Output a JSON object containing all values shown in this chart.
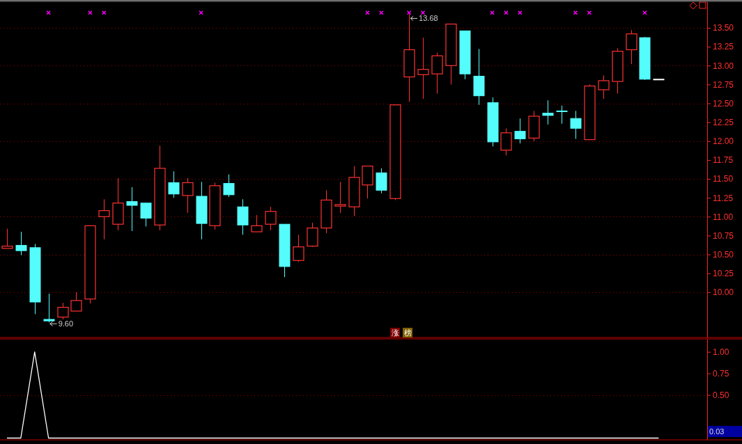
{
  "chart_data": [
    {
      "type": "candlestick",
      "categories": [
        null,
        null,
        null,
        null,
        null,
        null,
        null,
        null,
        null,
        null,
        null,
        null,
        null,
        null,
        null,
        null,
        null,
        null,
        null,
        null,
        null,
        null,
        null,
        null,
        null,
        null,
        null,
        null,
        null,
        null,
        null,
        null,
        null,
        null,
        null,
        null,
        null,
        null,
        null,
        null,
        null,
        null,
        null,
        null,
        null,
        null,
        null,
        null,
        null,
        null,
        null
      ],
      "ohlc": [
        [
          10.58,
          10.84,
          10.58,
          10.61
        ],
        [
          10.62,
          10.8,
          10.49,
          10.55
        ],
        [
          10.59,
          10.64,
          9.71,
          9.87
        ],
        [
          9.64,
          9.98,
          9.6,
          9.62
        ],
        [
          9.67,
          9.86,
          9.64,
          9.8
        ],
        [
          9.75,
          10.0,
          9.75,
          9.89
        ],
        [
          9.91,
          10.88,
          9.85,
          10.88
        ],
        [
          11.0,
          11.23,
          10.7,
          11.08
        ],
        [
          10.9,
          11.51,
          10.82,
          11.18
        ],
        [
          11.2,
          11.39,
          10.81,
          11.15
        ],
        [
          11.18,
          11.18,
          10.87,
          10.98
        ],
        [
          10.89,
          11.94,
          10.82,
          11.64
        ],
        [
          11.45,
          11.6,
          11.25,
          11.3
        ],
        [
          11.28,
          11.51,
          11.05,
          11.45
        ],
        [
          11.27,
          11.46,
          10.7,
          10.91
        ],
        [
          10.88,
          11.45,
          10.83,
          11.41
        ],
        [
          11.44,
          11.56,
          11.26,
          11.29
        ],
        [
          11.13,
          11.23,
          10.76,
          10.89
        ],
        [
          10.8,
          11.02,
          10.8,
          10.88
        ],
        [
          10.9,
          11.13,
          10.82,
          11.07
        ],
        [
          10.9,
          10.9,
          10.2,
          10.34
        ],
        [
          10.42,
          10.76,
          10.4,
          10.6
        ],
        [
          10.61,
          10.92,
          10.6,
          10.85
        ],
        [
          10.85,
          11.35,
          10.78,
          11.22
        ],
        [
          11.14,
          11.46,
          11.05,
          11.16
        ],
        [
          11.13,
          11.67,
          11.01,
          11.52
        ],
        [
          11.42,
          11.67,
          11.24,
          11.67
        ],
        [
          11.58,
          11.64,
          11.31,
          11.35
        ],
        [
          11.24,
          12.48,
          11.22,
          12.48
        ],
        [
          12.85,
          13.68,
          12.52,
          13.21
        ],
        [
          12.88,
          13.37,
          12.56,
          12.95
        ],
        [
          12.89,
          13.17,
          12.63,
          13.13
        ],
        [
          13.0,
          13.55,
          12.75,
          13.55
        ],
        [
          13.46,
          13.46,
          12.82,
          12.89
        ],
        [
          12.86,
          13.22,
          12.48,
          12.6
        ],
        [
          12.51,
          12.58,
          11.93,
          11.99
        ],
        [
          11.88,
          12.17,
          11.81,
          12.11
        ],
        [
          12.13,
          12.3,
          11.97,
          12.03
        ],
        [
          12.04,
          12.4,
          12.0,
          12.33
        ],
        [
          12.37,
          12.54,
          12.22,
          12.34
        ],
        [
          12.4,
          12.47,
          12.23,
          12.39
        ],
        [
          12.3,
          12.4,
          12.03,
          12.17
        ],
        [
          12.02,
          12.75,
          12.02,
          12.73
        ],
        [
          12.68,
          12.87,
          12.56,
          12.8
        ],
        [
          12.79,
          13.23,
          12.63,
          13.19
        ],
        [
          13.21,
          13.47,
          13.02,
          13.42
        ],
        [
          13.37,
          13.38,
          12.81,
          12.82
        ],
        [
          12.82,
          12.82,
          12.82,
          12.82
        ],
        null,
        null,
        null
      ],
      "colors": [
        "#ff3232",
        "#54fcfc",
        "#54fcfc",
        "#54fcfc",
        "#ff3232",
        "#ff3232",
        "#ff3232",
        "#ff3232",
        "#ff3232",
        "#54fcfc",
        "#54fcfc",
        "#ff3232",
        "#54fcfc",
        "#ff3232",
        "#54fcfc",
        "#ff3232",
        "#54fcfc",
        "#54fcfc",
        "#ff3232",
        "#ff3232",
        "#54fcfc",
        "#ff3232",
        "#ff3232",
        "#ff3232",
        "#ff3232",
        "#ff3232",
        "#ff3232",
        "#54fcfc",
        "#ff3232",
        "#ff3232",
        "#ff3232",
        "#ff3232",
        "#ff3232",
        "#54fcfc",
        "#54fcfc",
        "#54fcfc",
        "#ff3232",
        "#54fcfc",
        "#ff3232",
        "#54fcfc",
        "#54fcfc",
        "#54fcfc",
        "#ff3232",
        "#ff3232",
        "#ff3232",
        "#ff3232",
        "#54fcfc",
        "#ffffff",
        null,
        null,
        null
      ],
      "series": [
        {
          "type": "scatter",
          "color": "#ff00ff",
          "values": [
            null,
            null,
            null,
            13.7,
            null,
            null,
            13.7,
            13.7,
            null,
            null,
            null,
            null,
            null,
            null,
            13.7,
            null,
            null,
            null,
            null,
            null,
            null,
            null,
            null,
            null,
            null,
            null,
            13.7,
            13.7,
            null,
            13.7,
            13.7,
            null,
            null,
            null,
            null,
            13.7,
            13.7,
            13.7,
            null,
            null,
            null,
            13.7,
            13.7,
            null,
            null,
            null,
            13.7,
            null,
            null,
            null,
            null
          ]
        }
      ],
      "marker": "cross",
      "ylim": [
        9.4,
        13.85
      ],
      "yticks": [
        {
          "value": 10,
          "label": "10.00"
        },
        {
          "value": 10.25,
          "label": "10.25"
        },
        {
          "value": 10.5,
          "label": "10.50"
        },
        {
          "value": 10.75,
          "label": "10.75"
        },
        {
          "value": 11,
          "label": "11.00"
        },
        {
          "value": 11.25,
          "label": "11.25"
        },
        {
          "value": 11.5,
          "label": "11.50"
        },
        {
          "value": 11.75,
          "label": "11.75"
        },
        {
          "value": 12,
          "label": "12.00"
        },
        {
          "value": 12.25,
          "label": "12.25"
        },
        {
          "value": 12.5,
          "label": "12.50"
        },
        {
          "value": 12.75,
          "label": "12.75"
        },
        {
          "value": 13,
          "label": "13.00"
        },
        {
          "value": 13.25,
          "label": "13.25"
        },
        {
          "value": 13.5,
          "label": "13.50"
        }
      ],
      "grid": "y",
      "annotations": [
        "13.68",
        "9.60",
        "涨",
        "榜"
      ]
    },
    {
      "type": "line",
      "categories": [
        null,
        null,
        null,
        null,
        null,
        null,
        null,
        null,
        null,
        null,
        null,
        null,
        null,
        null,
        null,
        null,
        null,
        null,
        null,
        null,
        null,
        null,
        null,
        null,
        null,
        null,
        null,
        null,
        null,
        null,
        null,
        null,
        null,
        null,
        null,
        null,
        null,
        null,
        null,
        null,
        null,
        null,
        null,
        null,
        null,
        null,
        null,
        null,
        null,
        null,
        null
      ],
      "series": [
        {
          "color": "#ffffff",
          "values": [
            0,
            0,
            1,
            0,
            0,
            0,
            0,
            0,
            0,
            0,
            0,
            0,
            0,
            0,
            0,
            0,
            0,
            0,
            0,
            0,
            0,
            0,
            0,
            0,
            0,
            0,
            0,
            0,
            0,
            0,
            0,
            0,
            0,
            0,
            0,
            0,
            0,
            0,
            0,
            0,
            0,
            0,
            0,
            0,
            0,
            0,
            0,
            0,
            null,
            null,
            null
          ]
        }
      ],
      "ylim": [
        -0.02,
        1.15
      ],
      "yticks": [
        {
          "value": 0.5,
          "label": "0.50"
        },
        {
          "value": 0.75,
          "label": "0.75"
        },
        {
          "value": 1,
          "label": "1.00"
        }
      ],
      "ref_lines": [
        {
          "axis": "y",
          "value": 0.5,
          "color": "#a00000",
          "line_style": "dotted"
        }
      ],
      "annotations": [
        "0.03"
      ]
    }
  ]
}
